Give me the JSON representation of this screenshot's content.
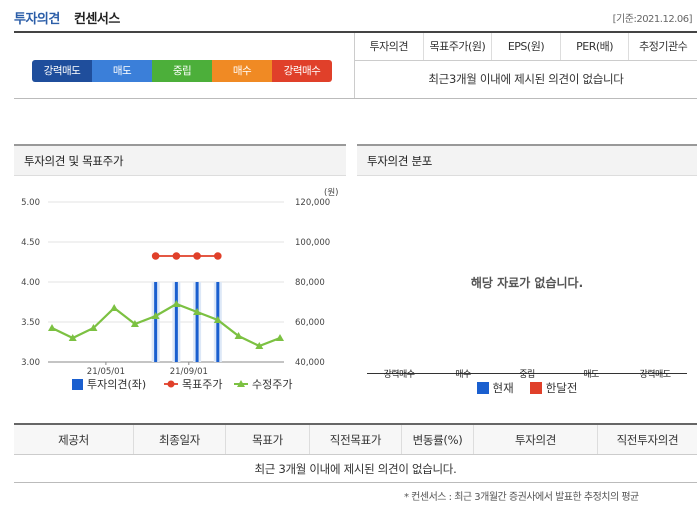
{
  "header": {
    "title_main": "투자의견",
    "title_sub": "컨센서스",
    "base_date_label": "[기준:",
    "base_date": "2021.12.06",
    "base_date_close": "]"
  },
  "opinion_scale": [
    {
      "label": "강력매도",
      "color": "#1f4e9c"
    },
    {
      "label": "매도",
      "color": "#3b7fd9"
    },
    {
      "label": "중립",
      "color": "#4caf3a"
    },
    {
      "label": "매수",
      "color": "#f08a24"
    },
    {
      "label": "강력매수",
      "color": "#e0402a"
    }
  ],
  "consensus_table": {
    "columns": [
      "투자의견",
      "목표주가(원)",
      "EPS(원)",
      "PER(배)",
      "추정기관수"
    ],
    "empty_message": "최근3개월 이내에 제시된 의견이 없습니다"
  },
  "left_panel": {
    "title": "투자의견 및 목표주가",
    "chart_data": {
      "type": "line",
      "x_ticks": [
        "21/05/01",
        "21/09/01"
      ],
      "left_axis": {
        "ticks": [
          "5.00",
          "4.50",
          "4.00",
          "3.50",
          "3.00"
        ],
        "ylim": [
          3.0,
          5.0
        ]
      },
      "right_axis": {
        "unit": "(원)",
        "ticks": [
          "120,000",
          "100,000",
          "80,000",
          "60,000",
          "40,000"
        ],
        "ylim": [
          40000,
          120000
        ]
      },
      "series": [
        {
          "name": "투자의견(좌)",
          "type": "bar",
          "color": "#1a5fcf",
          "values": [
            {
              "i": 5,
              "v": 4.0
            },
            {
              "i": 6,
              "v": 4.0
            },
            {
              "i": 7,
              "v": 4.0
            },
            {
              "i": 8,
              "v": 4.0
            }
          ]
        },
        {
          "name": "목표주가",
          "type": "line",
          "color": "#e0402a",
          "values": [
            {
              "i": 5,
              "v": 93000
            },
            {
              "i": 6,
              "v": 93000
            },
            {
              "i": 7,
              "v": 93000
            },
            {
              "i": 8,
              "v": 93000
            }
          ]
        },
        {
          "name": "수정주가",
          "type": "line",
          "color": "#7cc142",
          "values": [
            {
              "i": 0,
              "v": 57000
            },
            {
              "i": 1,
              "v": 52000
            },
            {
              "i": 2,
              "v": 57000
            },
            {
              "i": 3,
              "v": 67000
            },
            {
              "i": 4,
              "v": 59000
            },
            {
              "i": 5,
              "v": 63000
            },
            {
              "i": 6,
              "v": 69000
            },
            {
              "i": 7,
              "v": 65000
            },
            {
              "i": 8,
              "v": 61000
            },
            {
              "i": 9,
              "v": 53000
            },
            {
              "i": 10,
              "v": 48000
            },
            {
              "i": 11,
              "v": 52000
            }
          ]
        }
      ]
    },
    "legend": [
      "투자의견(좌)",
      "목표주가",
      "수정주가"
    ]
  },
  "right_panel": {
    "title": "투자의견 분포",
    "empty_message": "해당 자료가 없습니다.",
    "categories": [
      "강력매수",
      "매수",
      "중립",
      "매도",
      "강력매도"
    ],
    "legend": [
      {
        "label": "현재",
        "color": "#1a5fcf"
      },
      {
        "label": "한달전",
        "color": "#e0402a"
      }
    ]
  },
  "bottom_table": {
    "columns": [
      "제공처",
      "최종일자",
      "목표가",
      "직전목표가",
      "변동률(%)",
      "투자의견",
      "직전투자의견"
    ],
    "empty_message": "최근 3개월 이내에 제시된 의견이 없습니다."
  },
  "footnote": "* 컨센서스 : 최근 3개월간 증권사에서 발표한 추정치의 평균"
}
